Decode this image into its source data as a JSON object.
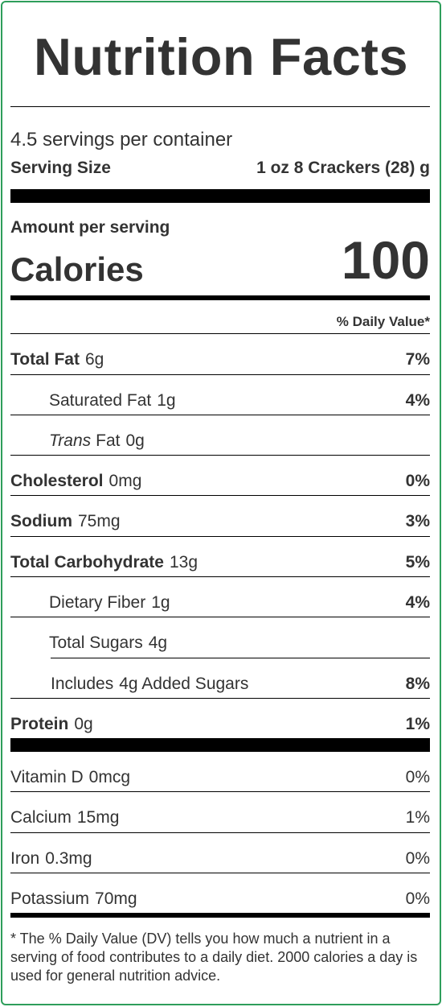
{
  "title": "Nutrition Facts",
  "servings_per_container": "4.5 servings per container",
  "serving_size": {
    "label": "Serving Size",
    "value": "1 oz 8 Crackers (28) g"
  },
  "amount_per_serving": "Amount per serving",
  "calories": {
    "label": "Calories",
    "value": "100"
  },
  "daily_value_header": "% Daily Value*",
  "nutrients": [
    {
      "name": "Total Fat",
      "amount": "6g",
      "dv": "7%"
    },
    {
      "name": "Saturated Fat",
      "amount": "1g",
      "dv": "4%"
    },
    {
      "name_italic": "Trans",
      "name": "Fat",
      "amount": "0g",
      "dv": ""
    },
    {
      "name": "Cholesterol",
      "amount": "0mg",
      "dv": "0%"
    },
    {
      "name": "Sodium",
      "amount": "75mg",
      "dv": "3%"
    },
    {
      "name": "Total Carbohydrate",
      "amount": "13g",
      "dv": "5%"
    },
    {
      "name": "Dietary Fiber",
      "amount": "1g",
      "dv": "4%"
    },
    {
      "name": "Total Sugars",
      "amount": "4g",
      "dv": ""
    },
    {
      "name": "Includes",
      "amount": "4g Added Sugars",
      "dv": "8%"
    },
    {
      "name": "Protein",
      "amount": "0g",
      "dv": "1%"
    }
  ],
  "vitamins": [
    {
      "name": "Vitamin D",
      "amount": "0mcg",
      "dv": "0%"
    },
    {
      "name": "Calcium",
      "amount": "15mg",
      "dv": "1%"
    },
    {
      "name": "Iron",
      "amount": "0.3mg",
      "dv": "0%"
    },
    {
      "name": "Potassium",
      "amount": "70mg",
      "dv": "0%"
    }
  ],
  "footnote": "* The % Daily Value (DV) tells you how much a nutrient in a serving of food contributes to a daily diet. 2000 calories a day is used for general nutrition advice.",
  "colors": {
    "border": "#2e9e5b",
    "text": "#333333",
    "rules": "#000000"
  }
}
